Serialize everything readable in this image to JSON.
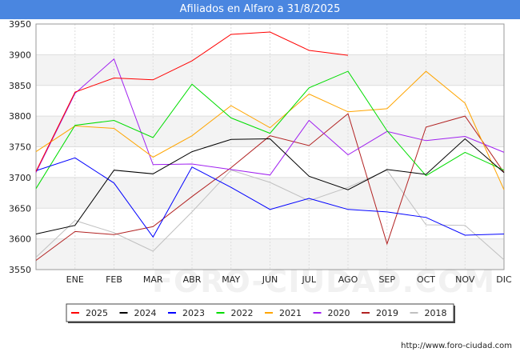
{
  "header": {
    "title": "Afiliados en Alfaro a 31/8/2025"
  },
  "footer": {
    "url": "http://www.foro-ciudad.com"
  },
  "watermark": {
    "text": "FORO-CIUDAD.COM"
  },
  "chart_data": {
    "type": "line",
    "title": "Afiliados en Alfaro a 31/8/2025",
    "xlabel": "",
    "ylabel": "",
    "categories": [
      "",
      "ENE",
      "FEB",
      "MAR",
      "ABR",
      "MAY",
      "JUN",
      "JUL",
      "AGO",
      "SEP",
      "OCT",
      "NOV",
      "DIC"
    ],
    "ylim": [
      3550,
      3950
    ],
    "yticks": [
      3550,
      3600,
      3650,
      3700,
      3750,
      3800,
      3850,
      3900,
      3950
    ],
    "grid": true,
    "legend_position": "bottom",
    "series": [
      {
        "name": "2025",
        "color": "#ff0000",
        "values": [
          3710,
          3839,
          3862,
          3859,
          3890,
          3933,
          3937,
          3907,
          3899,
          null,
          null,
          null,
          null
        ]
      },
      {
        "name": "2024",
        "color": "#000000",
        "values": [
          3608,
          3622,
          3712,
          3706,
          3742,
          3762,
          3763,
          3702,
          3680,
          3713,
          3705,
          3763,
          3708
        ]
      },
      {
        "name": "2023",
        "color": "#0000ff",
        "values": [
          3711,
          3732,
          3691,
          3603,
          3717,
          3684,
          3648,
          3666,
          3648,
          3644,
          3635,
          3606,
          3608
        ]
      },
      {
        "name": "2022",
        "color": "#00dd00",
        "values": [
          3682,
          3785,
          3793,
          3765,
          3852,
          3797,
          3772,
          3846,
          3873,
          3776,
          3703,
          3741,
          3712
        ]
      },
      {
        "name": "2021",
        "color": "#ffa500",
        "values": [
          3742,
          3784,
          3780,
          3733,
          3768,
          3817,
          3781,
          3836,
          3807,
          3812,
          3873,
          3821,
          3680
        ]
      },
      {
        "name": "2020",
        "color": "#a020f0",
        "values": [
          3708,
          3837,
          3893,
          3721,
          3722,
          3713,
          3704,
          3793,
          3737,
          3775,
          3760,
          3767,
          3741
        ]
      },
      {
        "name": "2019",
        "color": "#b22222",
        "values": [
          3565,
          3612,
          3607,
          3620,
          3669,
          3716,
          3768,
          3752,
          3804,
          3592,
          3782,
          3800,
          3708
        ]
      },
      {
        "name": "2018",
        "color": "#c0c0c0",
        "values": [
          3570,
          3630,
          3610,
          3580,
          3644,
          3712,
          3692,
          3662,
          3684,
          3712,
          3623,
          3622,
          3566
        ]
      }
    ]
  }
}
